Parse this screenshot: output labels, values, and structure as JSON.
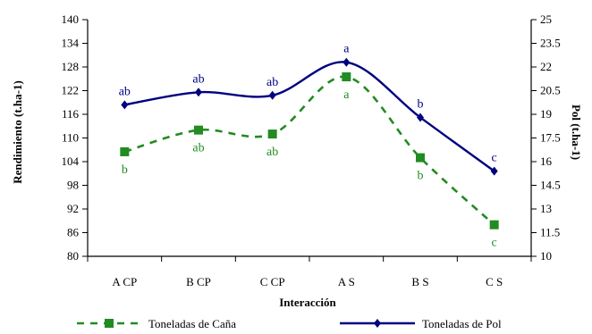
{
  "chart_data": {
    "type": "line",
    "categories": [
      "A CP",
      "B CP",
      "C CP",
      "A S",
      "B S",
      "C S"
    ],
    "xlabel": "Interacción",
    "ylabel_left": "Rendimiento (t.ha-1)",
    "ylabel_right": "Pol (t.ha-1)",
    "ylim_left": [
      80,
      140
    ],
    "yticks_left": [
      "80",
      "86",
      "92",
      "98",
      "104",
      "110",
      "116",
      "122",
      "128",
      "134",
      "140"
    ],
    "ylim_right": [
      10,
      25
    ],
    "yticks_right": [
      "10",
      "11.5",
      "13",
      "14.5",
      "16",
      "17.5",
      "19",
      "20.5",
      "22",
      "23.5",
      "25"
    ],
    "legend_position": "bottom",
    "series": [
      {
        "name": "Toneladas de Caña",
        "axis": "left",
        "color": "#228b22",
        "style": "dashed-square",
        "values": [
          106.5,
          112,
          111,
          125.5,
          105,
          88
        ],
        "labels": [
          "b",
          "ab",
          "ab",
          "a",
          "b",
          "c"
        ]
      },
      {
        "name": "Toneladas de Pol",
        "axis": "right",
        "color": "#000080",
        "style": "solid-diamond",
        "values": [
          19.6,
          20.4,
          20.2,
          22.3,
          18.8,
          15.4
        ],
        "labels": [
          "ab",
          "ab",
          "ab",
          "a",
          "b",
          "c"
        ]
      }
    ]
  }
}
